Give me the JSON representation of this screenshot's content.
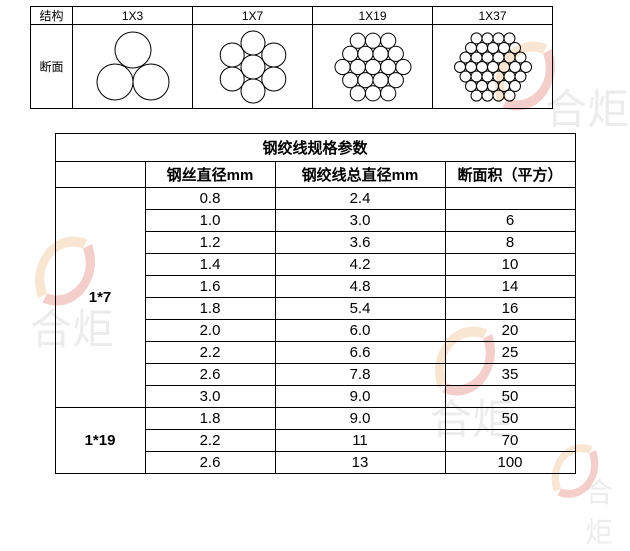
{
  "structure_table": {
    "header_label": "结构",
    "body_label": "断面",
    "columns": [
      "1X3",
      "1X7",
      "1X19",
      "1X37"
    ]
  },
  "spec_table": {
    "title": "钢绞线规格参数",
    "headers": {
      "wire_diameter": "钢丝直径mm",
      "total_diameter": "钢绞线总直径mm",
      "area": "断面积（平方）"
    },
    "groups": [
      {
        "type": "1*7",
        "rows": [
          {
            "wd": "0.8",
            "td": "2.4",
            "area": ""
          },
          {
            "wd": "1.0",
            "td": "3.0",
            "area": "6"
          },
          {
            "wd": "1.2",
            "td": "3.6",
            "area": "8"
          },
          {
            "wd": "1.4",
            "td": "4.2",
            "area": "10"
          },
          {
            "wd": "1.6",
            "td": "4.8",
            "area": "14"
          },
          {
            "wd": "1.8",
            "td": "5.4",
            "area": "16"
          },
          {
            "wd": "2.0",
            "td": "6.0",
            "area": "20"
          },
          {
            "wd": "2.2",
            "td": "6.6",
            "area": "25"
          },
          {
            "wd": "2.6",
            "td": "7.8",
            "area": "35"
          },
          {
            "wd": "3.0",
            "td": "9.0",
            "area": "50"
          }
        ]
      },
      {
        "type": "1*19",
        "rows": [
          {
            "wd": "1.8",
            "td": "9.0",
            "area": "50"
          },
          {
            "wd": "2.2",
            "td": "11",
            "area": "70"
          },
          {
            "wd": "2.6",
            "td": "13",
            "area": "100"
          }
        ]
      }
    ]
  },
  "watermark_text": "合炬",
  "colors": {
    "border": "#000000",
    "text": "#000000",
    "background": "#ffffff",
    "watermark_gray": "rgba(200,200,200,0.35)",
    "logo_orange": "#e8a050",
    "logo_red": "#d04030"
  }
}
